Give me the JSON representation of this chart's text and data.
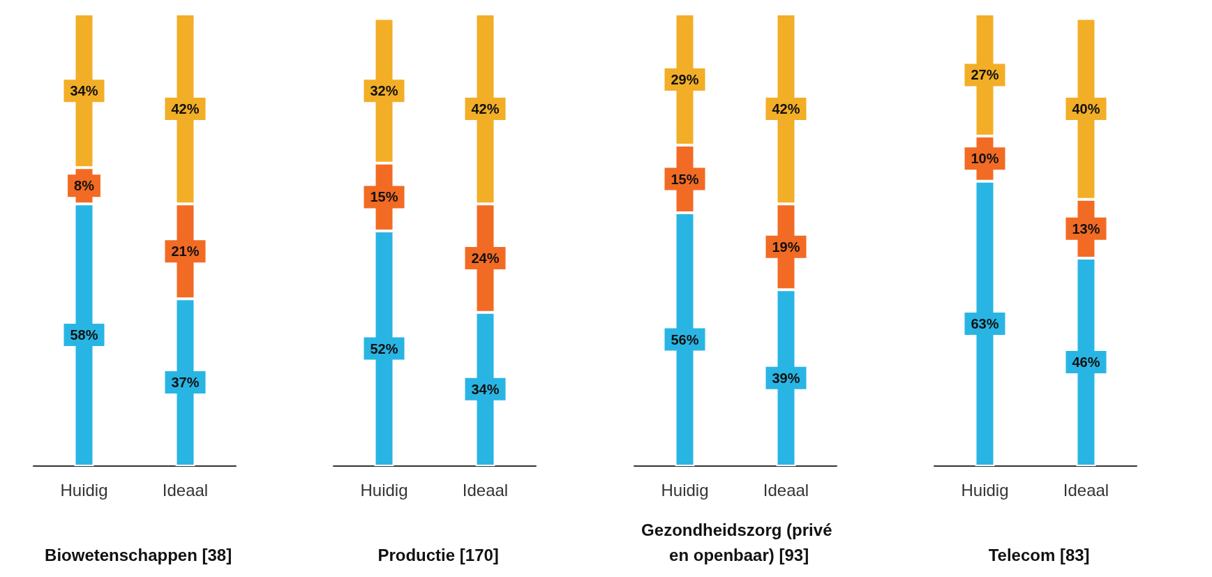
{
  "chart_data": [
    {
      "type": "bar",
      "title": "Biowetenschappen [38]",
      "categories": [
        "Huidig",
        "Ideaal"
      ],
      "stacked": true,
      "ylim": [
        0,
        100
      ],
      "tick_labels": "x",
      "grid": false,
      "series": [
        {
          "color": "#29b5e3",
          "values": [
            58,
            37
          ],
          "value_labels": [
            "58%",
            "37%"
          ]
        },
        {
          "color": "#f26b24",
          "values": [
            8,
            21
          ],
          "value_labels": [
            "8%",
            "21%"
          ]
        },
        {
          "color": "#f2ae27",
          "values": [
            34,
            42
          ],
          "value_labels": [
            "34%",
            "42%"
          ]
        }
      ]
    },
    {
      "type": "bar",
      "title": "Productie [170]",
      "categories": [
        "Huidig",
        "Ideaal"
      ],
      "stacked": true,
      "ylim": [
        0,
        100
      ],
      "tick_labels": "x",
      "grid": false,
      "series": [
        {
          "color": "#29b5e3",
          "values": [
            52,
            34
          ],
          "value_labels": [
            "52%",
            "34%"
          ]
        },
        {
          "color": "#f26b24",
          "values": [
            15,
            24
          ],
          "value_labels": [
            "15%",
            "24%"
          ]
        },
        {
          "color": "#f2ae27",
          "values": [
            32,
            42
          ],
          "value_labels": [
            "32%",
            "42%"
          ]
        }
      ]
    },
    {
      "type": "bar",
      "title": "Gezondheidszorg (privé en openbaar) [93]",
      "categories": [
        "Huidig",
        "Ideaal"
      ],
      "stacked": true,
      "ylim": [
        0,
        100
      ],
      "tick_labels": "x",
      "grid": false,
      "series": [
        {
          "color": "#29b5e3",
          "values": [
            56,
            39
          ],
          "value_labels": [
            "56%",
            "39%"
          ]
        },
        {
          "color": "#f26b24",
          "values": [
            15,
            19
          ],
          "value_labels": [
            "15%",
            "19%"
          ]
        },
        {
          "color": "#f2ae27",
          "values": [
            29,
            42
          ],
          "value_labels": [
            "29%",
            "42%"
          ]
        }
      ]
    },
    {
      "type": "bar",
      "title": "Telecom [83]",
      "categories": [
        "Huidig",
        "Ideaal"
      ],
      "stacked": true,
      "ylim": [
        0,
        100
      ],
      "tick_labels": "x",
      "grid": false,
      "series": [
        {
          "color": "#29b5e3",
          "values": [
            63,
            46
          ],
          "value_labels": [
            "63%",
            "46%"
          ]
        },
        {
          "color": "#f26b24",
          "values": [
            10,
            13
          ],
          "value_labels": [
            "10%",
            "13%"
          ]
        },
        {
          "color": "#f2ae27",
          "values": [
            27,
            40
          ],
          "value_labels": [
            "27%",
            "40%"
          ]
        }
      ]
    }
  ]
}
